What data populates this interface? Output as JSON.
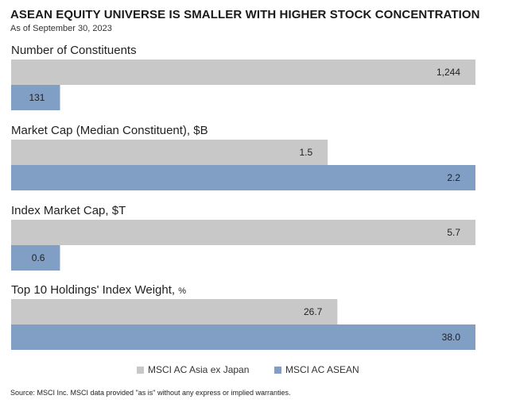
{
  "header": {
    "title": "ASEAN EQUITY UNIVERSE IS SMALLER WITH HIGHER STOCK CONCENTRATION",
    "subtitle": "As of September 30, 2023"
  },
  "footer": {
    "source": "Source: MSCI Inc. MSCI data provided \"as is\" without any express or implied warranties."
  },
  "colors": {
    "asia_ex_japan": "#c8c8c8",
    "asean": "#819ec4"
  },
  "chart_data": {
    "type": "bar",
    "orientation": "horizontal",
    "legend_position": "bottom-center",
    "grid": false,
    "series": [
      {
        "name": "MSCI AC Asia ex Japan"
      },
      {
        "name": "MSCI AC ASEAN"
      }
    ],
    "panels": [
      {
        "title": "Number of Constituents",
        "unit": "",
        "values": [
          1244,
          131
        ],
        "labels": [
          "1,244",
          "131"
        ]
      },
      {
        "title": "Market Cap (Median Constituent), $B",
        "unit": "",
        "values": [
          1.5,
          2.2
        ],
        "labels": [
          "1.5",
          "2.2"
        ]
      },
      {
        "title": "Index Market Cap, $T",
        "unit": "",
        "values": [
          5.7,
          0.6
        ],
        "labels": [
          "5.7",
          "0.6"
        ]
      },
      {
        "title": "Top 10 Holdings' Index Weight, ",
        "unit": "%",
        "values": [
          26.7,
          38.0
        ],
        "labels": [
          "26.7",
          "38.0"
        ]
      }
    ]
  }
}
